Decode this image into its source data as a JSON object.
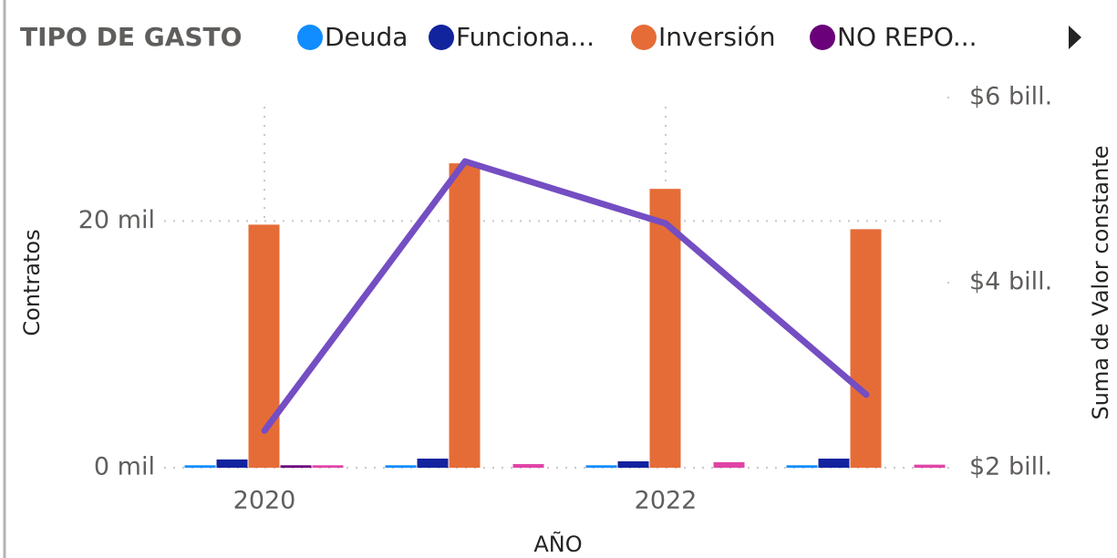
{
  "chart_data": {
    "type": "bar",
    "legend_title": "TIPO DE GASTO",
    "categories": [
      2020,
      null,
      2022,
      null
    ],
    "series": [
      {
        "name": "Deuda",
        "color": "#118DFF",
        "values": [
          200,
          200,
          200,
          200
        ]
      },
      {
        "name": "Funciona...",
        "color": "#12239E",
        "values": [
          670,
          740,
          520,
          740
        ]
      },
      {
        "name": "Inversión",
        "color": "#E66C37",
        "values": [
          19700,
          24670,
          22600,
          19330
        ]
      },
      {
        "name": "NO REPO...",
        "color": "#6B007B",
        "values": [
          200,
          0,
          0,
          0
        ]
      },
      {
        "name": null,
        "color": "#E044A7",
        "values": [
          200,
          300,
          450,
          250
        ]
      },
      {
        "name": null,
        "type": "line",
        "axis": "y2",
        "color": "#744EC2",
        "values": [
          2400000000000,
          5310000000000,
          4640000000000,
          2790000000000
        ]
      }
    ],
    "xlabel": "AÑO",
    "ylabel": "Contratos",
    "y2label": "Suma de Valor constante",
    "ylim": [
      0,
      30000
    ],
    "yticks": [
      {
        "value": 0,
        "label": "0 mil"
      },
      {
        "value": 20000,
        "label": "20 mil"
      }
    ],
    "y2lim": [
      2000000000000,
      6000000000000
    ],
    "y2ticks": [
      {
        "value": 2000000000000,
        "label": "$2 bill."
      },
      {
        "value": 4000000000000,
        "label": "$4 bill."
      },
      {
        "value": 6000000000000,
        "label": "$6 bill."
      }
    ],
    "grid": true
  }
}
